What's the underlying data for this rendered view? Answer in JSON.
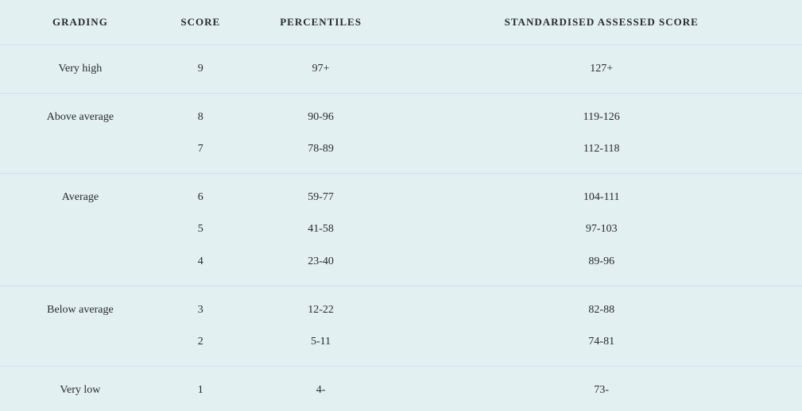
{
  "colors": {
    "background": "#e2f0f2",
    "border": "#cfe2e4",
    "text": "#2a2a2a"
  },
  "typography": {
    "header_fontsize": 13,
    "body_fontsize": 14,
    "font_family": "Georgia"
  },
  "border_radius": 20,
  "columns": [
    {
      "key": "grading",
      "label": "GRADING",
      "width_pct": 20
    },
    {
      "key": "score",
      "label": "SCORE",
      "width_pct": 10
    },
    {
      "key": "percentiles",
      "label": "PERCENTILES",
      "width_pct": 20
    },
    {
      "key": "standard",
      "label": "STANDARDISED ASSESSED SCORE",
      "width_pct": 50
    }
  ],
  "groups": [
    {
      "grading": "Very high",
      "rows": [
        {
          "score": "9",
          "percentiles": "97+",
          "standard": "127+"
        }
      ]
    },
    {
      "grading": "Above average",
      "rows": [
        {
          "score": "8",
          "percentiles": "90-96",
          "standard": "119-126"
        },
        {
          "score": "7",
          "percentiles": "78-89",
          "standard": "112-118"
        }
      ]
    },
    {
      "grading": "Average",
      "rows": [
        {
          "score": "6",
          "percentiles": "59-77",
          "standard": "104-111"
        },
        {
          "score": "5",
          "percentiles": "41-58",
          "standard": "97-103"
        },
        {
          "score": "4",
          "percentiles": "23-40",
          "standard": "89-96"
        }
      ]
    },
    {
      "grading": "Below average",
      "rows": [
        {
          "score": "3",
          "percentiles": "12-22",
          "standard": "82-88"
        },
        {
          "score": "2",
          "percentiles": "5-11",
          "standard": "74-81"
        }
      ]
    },
    {
      "grading": "Very low",
      "rows": [
        {
          "score": "1",
          "percentiles": "4-",
          "standard": "73-"
        }
      ]
    }
  ]
}
